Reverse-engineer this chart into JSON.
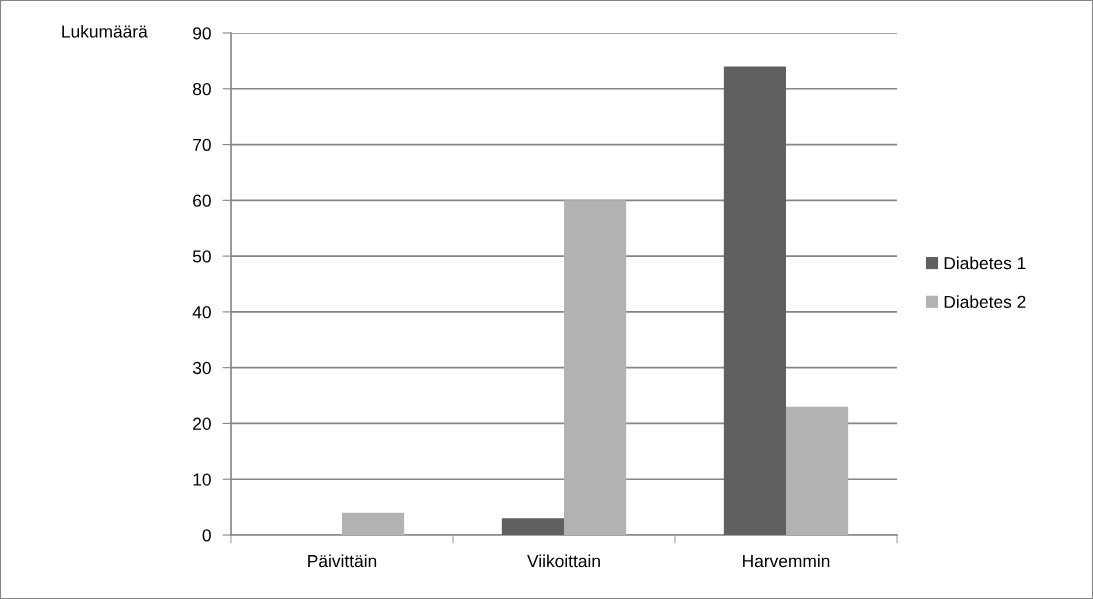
{
  "chart_data": {
    "type": "bar",
    "ylabel": "Lukumäärä",
    "categories": [
      "Päivittäin",
      "Viikoittain",
      "Harvemmin"
    ],
    "series": [
      {
        "name": "Diabetes 1",
        "color": "#606060",
        "values": [
          null,
          3,
          84
        ]
      },
      {
        "name": "Diabetes 2",
        "color": "#b2b2b2",
        "values": [
          4,
          60,
          23
        ]
      }
    ],
    "ylim": [
      0,
      90
    ],
    "yticks": [
      0,
      10,
      20,
      30,
      40,
      50,
      60,
      70,
      80,
      90
    ],
    "grid": "y",
    "legend": "right"
  }
}
